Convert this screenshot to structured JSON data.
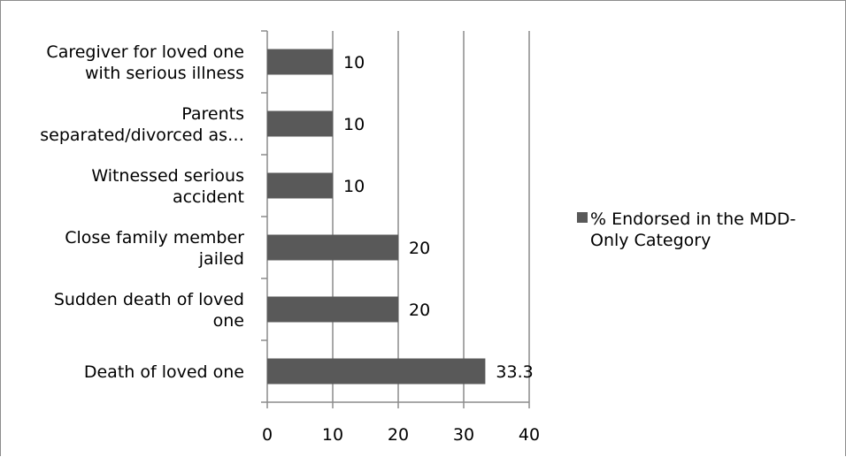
{
  "chart_data": {
    "type": "bar",
    "orientation": "horizontal",
    "categories": [
      [
        "Death of loved one"
      ],
      [
        "Sudden death of loved",
        "one"
      ],
      [
        "Close family member",
        "jailed"
      ],
      [
        "Witnessed serious",
        "accident"
      ],
      [
        "Parents",
        "separated/divorced as…"
      ],
      [
        "Caregiver for loved one",
        "with serious illness"
      ]
    ],
    "series": [
      {
        "name": "% Endorsed in the MDD-Only Category",
        "legend_lines": [
          "% Endorsed in the MDD-",
          "Only Category"
        ],
        "values": [
          33.3,
          20,
          20,
          10,
          10,
          10
        ],
        "data_labels": [
          "33.3",
          "20",
          "20",
          "10",
          "10",
          "10"
        ],
        "color": "#595959"
      }
    ],
    "x_ticks": [
      "0",
      "10",
      "20",
      "30",
      "40"
    ],
    "xlim": [
      0,
      40
    ],
    "grid": "vertical major gridlines",
    "legend_position": "right",
    "title": "",
    "xlabel": "",
    "ylabel": ""
  }
}
